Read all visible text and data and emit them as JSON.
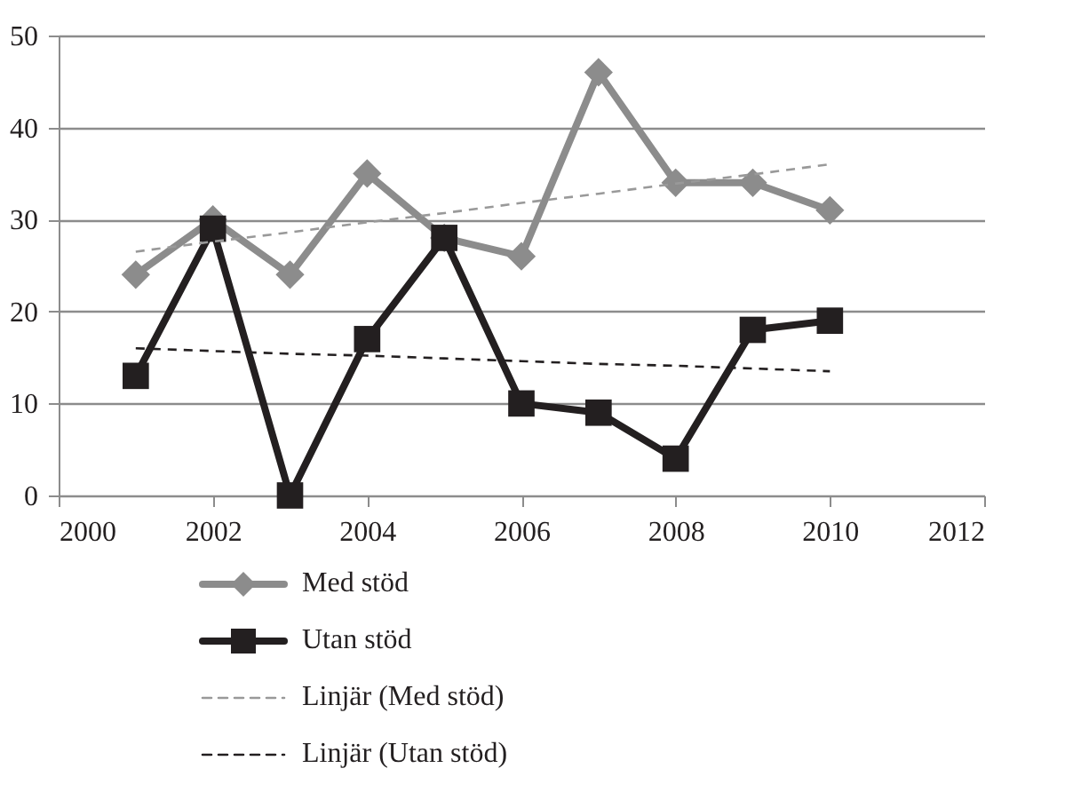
{
  "chart_data": {
    "type": "line",
    "x": [
      2001,
      2002,
      2003,
      2004,
      2005,
      2006,
      2007,
      2008,
      2009,
      2010
    ],
    "xlim": [
      2000,
      2012
    ],
    "xticks": [
      2000,
      2002,
      2004,
      2006,
      2008,
      2010,
      2012
    ],
    "ylim": [
      0,
      50
    ],
    "yticks": [
      0,
      10,
      20,
      30,
      40,
      50
    ],
    "grid": "y",
    "legend": "bottom left",
    "series": [
      {
        "name": "Med stöd",
        "color": "#8c8c8c",
        "marker": "diamond",
        "line_style": "solid",
        "values": [
          24,
          30,
          24,
          35,
          28,
          26,
          46,
          34,
          34,
          31
        ]
      },
      {
        "name": "Utan stöd",
        "color": "#231f20",
        "marker": "square",
        "line_style": "solid",
        "values": [
          13,
          29,
          0,
          17,
          28,
          10,
          9,
          4,
          18,
          19
        ]
      },
      {
        "name": "Linjär (Med stöd)",
        "type": "line",
        "color": "#999999",
        "marker": "none",
        "line_style": "dashed",
        "values": [
          26.5,
          27.6,
          28.6,
          29.7,
          30.7,
          31.8,
          32.8,
          33.9,
          34.9,
          36
        ]
      },
      {
        "name": "Linjär (Utan stöd)",
        "type": "line",
        "color": "#231f20",
        "marker": "none",
        "line_style": "dashed",
        "values": [
          16,
          15.7,
          15.4,
          15.2,
          14.9,
          14.6,
          14.3,
          14.1,
          13.8,
          13.5
        ]
      }
    ]
  }
}
